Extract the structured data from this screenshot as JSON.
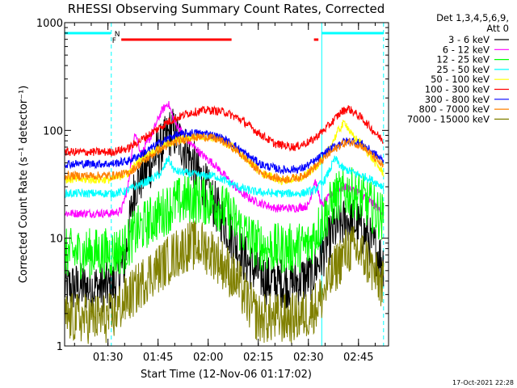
{
  "footer": {
    "timestamp": "17-Oct-2021 22:28"
  },
  "chart_data": {
    "type": "line",
    "title": "RHESSI Observing Summary Count Rates, Corrected",
    "xlabel": "Start Time (12-Nov-06 01:17:02)",
    "ylabel": "Corrected Count Rate (s⁻¹ detector⁻¹)",
    "yscale": "log",
    "ylim": [
      1,
      1000
    ],
    "xlim": [
      "01:17:02",
      "02:54:00"
    ],
    "x_ticks": [
      "01:30",
      "01:45",
      "02:00",
      "02:15",
      "02:30",
      "02:45"
    ],
    "y_ticks": [
      "1",
      "10",
      "100",
      "1000"
    ],
    "grid": false,
    "legend_position": "top-right",
    "legend_header": [
      "Det 1,3,4,5,6,9,",
      "Att 0"
    ],
    "flags": {
      "N_label": "N",
      "F_label": "F",
      "night_color": "#00ffff",
      "flare_color": "#ff0000",
      "night_intervals": [
        [
          "01:17:02",
          "01:30:50"
        ],
        [
          "02:34:00",
          "02:52:30"
        ]
      ],
      "flare_intervals": [
        [
          "01:34:00",
          "02:07:00"
        ],
        [
          "02:31:40",
          "02:33:00"
        ]
      ],
      "night_boundaries": [
        "01:31:00",
        "02:52:30"
      ],
      "eclipse_edges": [
        "02:34:00"
      ]
    },
    "series": [
      {
        "name": "3 - 6 keV",
        "color": "#000000",
        "points": [
          [
            "01:17:02",
            3.5
          ],
          [
            "01:31:00",
            3.5
          ],
          [
            "01:32:00",
            3.8
          ],
          [
            "01:35:00",
            6
          ],
          [
            "01:38:00",
            30
          ],
          [
            "01:42:00",
            45
          ],
          [
            "01:46:00",
            70
          ],
          [
            "01:49:00",
            100
          ],
          [
            "01:51:00",
            85
          ],
          [
            "01:54:00",
            60
          ],
          [
            "01:58:00",
            35
          ],
          [
            "02:02:00",
            20
          ],
          [
            "02:06:00",
            12
          ],
          [
            "02:10:00",
            7
          ],
          [
            "02:14:00",
            5
          ],
          [
            "02:18:00",
            4
          ],
          [
            "02:25:00",
            3.8
          ],
          [
            "02:31:00",
            4.5
          ],
          [
            "02:35:00",
            8
          ],
          [
            "02:38:00",
            12
          ],
          [
            "02:42:00",
            15
          ],
          [
            "02:45:00",
            13
          ],
          [
            "02:50:00",
            8
          ],
          [
            "02:52:30",
            6
          ]
        ]
      },
      {
        "name": "6 - 12 keV",
        "color": "#ff00ff",
        "points": [
          [
            "01:17:02",
            17
          ],
          [
            "01:31:00",
            17
          ],
          [
            "01:34:00",
            18
          ],
          [
            "01:36:00",
            30
          ],
          [
            "01:38:00",
            100
          ],
          [
            "01:40:00",
            60
          ],
          [
            "01:43:00",
            90
          ],
          [
            "01:46:00",
            150
          ],
          [
            "01:48:00",
            180
          ],
          [
            "01:50:00",
            120
          ],
          [
            "01:54:00",
            80
          ],
          [
            "01:58:00",
            60
          ],
          [
            "02:02:00",
            48
          ],
          [
            "02:06:00",
            35
          ],
          [
            "02:10:00",
            26
          ],
          [
            "02:14:00",
            22
          ],
          [
            "02:20:00",
            19
          ],
          [
            "02:26:00",
            19
          ],
          [
            "02:30:00",
            20
          ],
          [
            "02:32:00",
            35
          ],
          [
            "02:34:00",
            20
          ],
          [
            "02:38:00",
            28
          ],
          [
            "02:41:00",
            30
          ],
          [
            "02:45:00",
            27
          ],
          [
            "02:50:00",
            20
          ],
          [
            "02:52:30",
            17
          ]
        ]
      },
      {
        "name": "12 - 25 keV",
        "color": "#00ff00",
        "points": [
          [
            "01:17:02",
            7.2
          ],
          [
            "01:31:00",
            7.3
          ],
          [
            "01:35:00",
            8
          ],
          [
            "01:38:00",
            11
          ],
          [
            "01:42:00",
            14
          ],
          [
            "01:46:00",
            17
          ],
          [
            "01:50:00",
            21
          ],
          [
            "01:54:00",
            23
          ],
          [
            "01:58:00",
            23
          ],
          [
            "02:02:00",
            21
          ],
          [
            "02:06:00",
            17
          ],
          [
            "02:10:00",
            12
          ],
          [
            "02:14:00",
            9
          ],
          [
            "02:18:00",
            8
          ],
          [
            "02:25:00",
            8
          ],
          [
            "02:30:00",
            8.5
          ],
          [
            "02:34:00",
            14
          ],
          [
            "02:38:00",
            24
          ],
          [
            "02:42:00",
            27
          ],
          [
            "02:45:00",
            25
          ],
          [
            "02:50:00",
            18
          ],
          [
            "02:52:30",
            15
          ]
        ]
      },
      {
        "name": "25 - 50 keV",
        "color": "#00ffff",
        "points": [
          [
            "01:17:02",
            26
          ],
          [
            "01:31:00",
            26
          ],
          [
            "01:35:00",
            27
          ],
          [
            "01:38:00",
            30
          ],
          [
            "01:42:00",
            34
          ],
          [
            "01:46:00",
            40
          ],
          [
            "01:48:00",
            55
          ],
          [
            "01:50:00",
            42
          ],
          [
            "01:54:00",
            40
          ],
          [
            "01:58:00",
            38
          ],
          [
            "02:02:00",
            38
          ],
          [
            "02:06:00",
            33
          ],
          [
            "02:10:00",
            29
          ],
          [
            "02:14:00",
            27
          ],
          [
            "02:20:00",
            26
          ],
          [
            "02:28:00",
            26
          ],
          [
            "02:32:00",
            28
          ],
          [
            "02:35:00",
            35
          ],
          [
            "02:38:00",
            55
          ],
          [
            "02:40:00",
            45
          ],
          [
            "02:44:00",
            40
          ],
          [
            "02:48:00",
            36
          ],
          [
            "02:52:30",
            30
          ]
        ]
      },
      {
        "name": "50 - 100 keV",
        "color": "#ffff00",
        "points": [
          [
            "01:17:02",
            35
          ],
          [
            "01:31:00",
            35
          ],
          [
            "01:36:00",
            40
          ],
          [
            "01:40:00",
            55
          ],
          [
            "01:45:00",
            68
          ],
          [
            "01:50:00",
            80
          ],
          [
            "01:55:00",
            87
          ],
          [
            "02:00:00",
            88
          ],
          [
            "02:04:00",
            80
          ],
          [
            "02:08:00",
            68
          ],
          [
            "02:12:00",
            52
          ],
          [
            "02:16:00",
            40
          ],
          [
            "02:22:00",
            34
          ],
          [
            "02:28:00",
            36
          ],
          [
            "02:32:00",
            45
          ],
          [
            "02:36:00",
            65
          ],
          [
            "02:39:00",
            100
          ],
          [
            "02:41:00",
            120
          ],
          [
            "02:43:00",
            90
          ],
          [
            "02:46:00",
            75
          ],
          [
            "02:50:00",
            50
          ],
          [
            "02:52:30",
            40
          ]
        ]
      },
      {
        "name": "100 - 300 keV",
        "color": "#ff0000",
        "points": [
          [
            "01:17:02",
            63
          ],
          [
            "01:31:00",
            63
          ],
          [
            "01:36:00",
            68
          ],
          [
            "01:42:00",
            90
          ],
          [
            "01:48:00",
            120
          ],
          [
            "01:54:00",
            145
          ],
          [
            "02:00:00",
            155
          ],
          [
            "02:05:00",
            148
          ],
          [
            "02:10:00",
            125
          ],
          [
            "02:15:00",
            95
          ],
          [
            "02:20:00",
            75
          ],
          [
            "02:26:00",
            70
          ],
          [
            "02:31:00",
            80
          ],
          [
            "02:36:00",
            110
          ],
          [
            "02:40:00",
            150
          ],
          [
            "02:42:00",
            160
          ],
          [
            "02:46:00",
            130
          ],
          [
            "02:50:00",
            95
          ],
          [
            "02:52:30",
            80
          ]
        ]
      },
      {
        "name": "300 - 800 keV",
        "color": "#0000ff",
        "points": [
          [
            "01:17:02",
            49
          ],
          [
            "01:31:00",
            49
          ],
          [
            "01:36:00",
            52
          ],
          [
            "01:40:00",
            60
          ],
          [
            "01:45:00",
            75
          ],
          [
            "01:50:00",
            90
          ],
          [
            "01:55:00",
            95
          ],
          [
            "02:00:00",
            93
          ],
          [
            "02:04:00",
            85
          ],
          [
            "02:08:00",
            72
          ],
          [
            "02:12:00",
            58
          ],
          [
            "02:16:00",
            48
          ],
          [
            "02:22:00",
            43
          ],
          [
            "02:28:00",
            44
          ],
          [
            "02:32:00",
            52
          ],
          [
            "02:36:00",
            65
          ],
          [
            "02:40:00",
            78
          ],
          [
            "02:43:00",
            80
          ],
          [
            "02:46:00",
            75
          ],
          [
            "02:50:00",
            60
          ],
          [
            "02:52:30",
            52
          ]
        ]
      },
      {
        "name": "800 - 7000 keV",
        "color": "#ff8000",
        "points": [
          [
            "01:17:02",
            38
          ],
          [
            "01:31:00",
            38
          ],
          [
            "01:36:00",
            40
          ],
          [
            "01:40:00",
            50
          ],
          [
            "01:45:00",
            65
          ],
          [
            "01:50:00",
            78
          ],
          [
            "01:55:00",
            86
          ],
          [
            "02:00:00",
            87
          ],
          [
            "02:04:00",
            80
          ],
          [
            "02:08:00",
            67
          ],
          [
            "02:12:00",
            52
          ],
          [
            "02:16:00",
            40
          ],
          [
            "02:22:00",
            35
          ],
          [
            "02:28:00",
            37
          ],
          [
            "02:32:00",
            46
          ],
          [
            "02:36:00",
            60
          ],
          [
            "02:40:00",
            75
          ],
          [
            "02:43:00",
            78
          ],
          [
            "02:46:00",
            72
          ],
          [
            "02:50:00",
            55
          ],
          [
            "02:52:30",
            46
          ]
        ]
      },
      {
        "name": "7000 - 15000 keV",
        "color": "#808000",
        "points": [
          [
            "01:17:02",
            1.8
          ],
          [
            "01:31:00",
            1.8
          ],
          [
            "01:33:00",
            2.2
          ],
          [
            "01:35:00",
            2.6
          ],
          [
            "01:38:00",
            3.2
          ],
          [
            "01:42:00",
            4.5
          ],
          [
            "01:46:00",
            5.5
          ],
          [
            "01:50:00",
            7
          ],
          [
            "01:54:00",
            8.5
          ],
          [
            "01:58:00",
            8.5
          ],
          [
            "02:02:00",
            7
          ],
          [
            "02:06:00",
            5
          ],
          [
            "02:09:00",
            3.8
          ],
          [
            "02:12:00",
            2.5
          ],
          [
            "02:15:00",
            1.8
          ],
          [
            "02:25:00",
            1.8
          ],
          [
            "02:30:00",
            2
          ],
          [
            "02:33:00",
            2.5
          ],
          [
            "02:36:00",
            3.8
          ],
          [
            "02:39:00",
            6
          ],
          [
            "02:42:00",
            8
          ],
          [
            "02:45:00",
            7.5
          ],
          [
            "02:48:00",
            6
          ],
          [
            "02:50:00",
            4.5
          ],
          [
            "02:52:30",
            3.5
          ]
        ]
      }
    ]
  }
}
